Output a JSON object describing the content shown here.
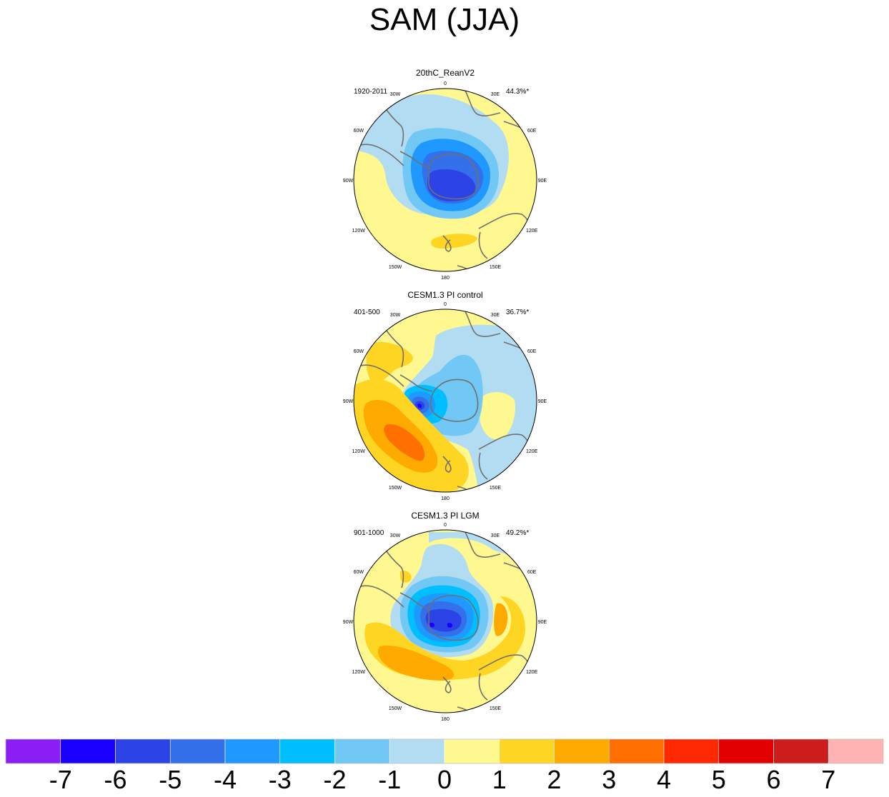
{
  "title": "SAM (JJA)",
  "colors": {
    "coast": "#707070",
    "border": "#000000",
    "background": "#ffffff"
  },
  "panels": [
    {
      "dataset": "20thC_ReanV2",
      "period": "1920-2011",
      "variance": "44.3%*",
      "lon_labels": [
        "0",
        "30E",
        "60E",
        "90E",
        "120E",
        "150E",
        "180",
        "150W",
        "120W",
        "90W",
        "60W",
        "30W"
      ]
    },
    {
      "dataset": "CESM1.3 PI control",
      "period": "401-500",
      "variance": "36.7%*",
      "lon_labels": [
        "0",
        "30E",
        "60E",
        "90E",
        "120E",
        "150E",
        "180",
        "150W",
        "120W",
        "90W",
        "60W",
        "30W"
      ]
    },
    {
      "dataset": "CESM1.3 PI LGM",
      "period": "901-1000",
      "variance": "49.2%*",
      "lon_labels": [
        "0",
        "30E",
        "60E",
        "90E",
        "120E",
        "150E",
        "180",
        "150W",
        "120W",
        "90W",
        "60W",
        "30W"
      ]
    }
  ],
  "colorbar": {
    "colors": [
      "#8a1ef5",
      "#1a00ff",
      "#2c44e6",
      "#3470ea",
      "#1f99ff",
      "#00bfff",
      "#72c8f5",
      "#b2dcf2",
      "#fff890",
      "#ffd524",
      "#ffaa00",
      "#ff7000",
      "#ff2800",
      "#e30000",
      "#cc1c1c",
      "#ffb3b3"
    ],
    "labels": [
      "-7",
      "-6",
      "-5",
      "-4",
      "-3",
      "-2",
      "-1",
      "0",
      "1",
      "2",
      "3",
      "4",
      "5",
      "6",
      "7"
    ]
  }
}
